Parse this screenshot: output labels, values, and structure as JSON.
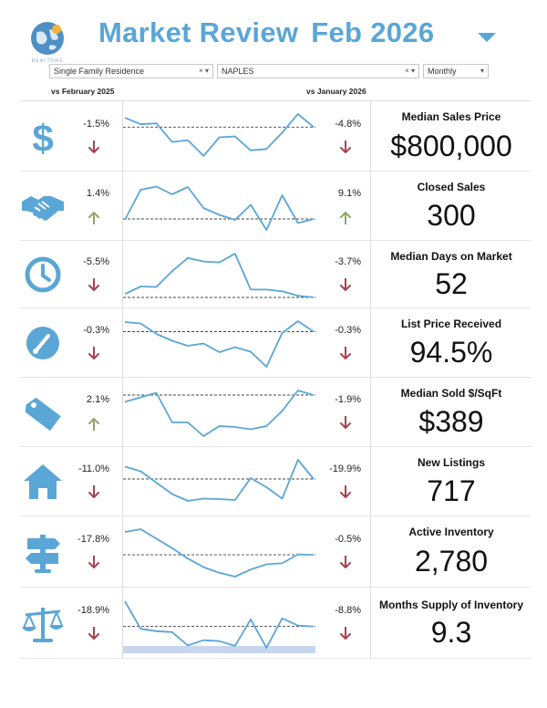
{
  "header": {
    "title": "Market Review",
    "period": "Feb 2026",
    "logo_text": "REALTORS"
  },
  "filters": {
    "property_type": "Single Family Residence",
    "area": "NAPLES",
    "frequency": "Monthly",
    "clear_symbol": "×",
    "dropdown_symbol": "▾"
  },
  "comparisons": {
    "year_label": "vs February 2025",
    "month_label": "vs January 2026"
  },
  "colors": {
    "accent": "#5aa6d6",
    "down": "#a8424e",
    "up": "#8fa86a"
  },
  "metrics": [
    {
      "icon": "dollar-icon",
      "name": "Median Sales Price",
      "value": "$800,000",
      "yoy": "-1.5%",
      "yoy_dir": "down",
      "mom": "-4.8%",
      "mom_dir": "down"
    },
    {
      "icon": "handshake-icon",
      "name": "Closed Sales",
      "value": "300",
      "yoy": "1.4%",
      "yoy_dir": "up",
      "mom": "9.1%",
      "mom_dir": "up"
    },
    {
      "icon": "clock-icon",
      "name": "Median Days on Market",
      "value": "52",
      "yoy": "-5.5%",
      "yoy_dir": "down",
      "mom": "-3.7%",
      "mom_dir": "down"
    },
    {
      "icon": "gauge-icon",
      "name": "List Price Received",
      "value": "94.5%",
      "yoy": "-0.3%",
      "yoy_dir": "down",
      "mom": "-0.3%",
      "mom_dir": "down"
    },
    {
      "icon": "price-tag-icon",
      "name": "Median Sold $/SqFt",
      "value": "$389",
      "yoy": "2.1%",
      "yoy_dir": "up",
      "mom": "-1.9%",
      "mom_dir": "down"
    },
    {
      "icon": "house-icon",
      "name": "New Listings",
      "value": "717",
      "yoy": "-11.0%",
      "yoy_dir": "down",
      "mom": "-19.9%",
      "mom_dir": "down"
    },
    {
      "icon": "signpost-icon",
      "name": "Active Inventory",
      "value": "2,780",
      "yoy": "-17.8%",
      "yoy_dir": "down",
      "mom": "-0.5%",
      "mom_dir": "down"
    },
    {
      "icon": "scale-icon",
      "name": "Months Supply of Inventory",
      "value": "9.3",
      "yoy": "-18.9%",
      "yoy_dir": "down",
      "mom": "-8.8%",
      "mom_dir": "down"
    }
  ],
  "chart_data": [
    {
      "type": "line",
      "series": [
        {
          "values": [
            0.92,
            0.78,
            0.8,
            0.4,
            0.44,
            0.1,
            0.5,
            0.52,
            0.22,
            0.25,
            0.6,
            1.0,
            0.72
          ]
        }
      ],
      "reference": 0.72
    },
    {
      "type": "line",
      "series": [
        {
          "values": [
            0.22,
            0.88,
            0.95,
            0.78,
            0.94,
            0.48,
            0.33,
            0.22,
            0.55,
            0.0,
            0.76,
            0.15,
            0.24
          ]
        }
      ],
      "reference": 0.24
    },
    {
      "type": "line",
      "series": [
        {
          "values": [
            0.08,
            0.25,
            0.24,
            0.6,
            0.9,
            0.82,
            0.8,
            1.0,
            0.18,
            0.18,
            0.14,
            0.04,
            0.0
          ]
        }
      ],
      "reference": 0.0
    },
    {
      "type": "line",
      "series": [
        {
          "values": [
            0.98,
            0.95,
            0.72,
            0.57,
            0.46,
            0.51,
            0.32,
            0.43,
            0.33,
            0.0,
            0.74,
            1.0,
            0.77
          ]
        }
      ],
      "reference": 0.77
    },
    {
      "type": "line",
      "series": [
        {
          "values": [
            0.75,
            0.85,
            0.95,
            0.3,
            0.3,
            0.0,
            0.22,
            0.2,
            0.15,
            0.22,
            0.55,
            1.0,
            0.9
          ]
        }
      ],
      "reference": 0.9
    },
    {
      "type": "line",
      "series": [
        {
          "values": [
            0.85,
            0.75,
            0.5,
            0.25,
            0.1,
            0.15,
            0.14,
            0.12,
            0.6,
            0.4,
            0.15,
            1.0,
            0.58
          ]
        }
      ],
      "reference": 0.58
    },
    {
      "type": "line",
      "series": [
        {
          "values": [
            0.94,
            1.0,
            0.8,
            0.6,
            0.38,
            0.2,
            0.08,
            0.0,
            0.15,
            0.26,
            0.28,
            0.47,
            0.46
          ]
        }
      ],
      "reference": 0.46
    },
    {
      "type": "line",
      "series": [
        {
          "values": [
            0.98,
            0.4,
            0.35,
            0.33,
            0.05,
            0.16,
            0.14,
            0.04,
            0.6,
            0.0,
            0.62,
            0.47,
            0.45
          ]
        }
      ],
      "reference": 0.45
    }
  ]
}
